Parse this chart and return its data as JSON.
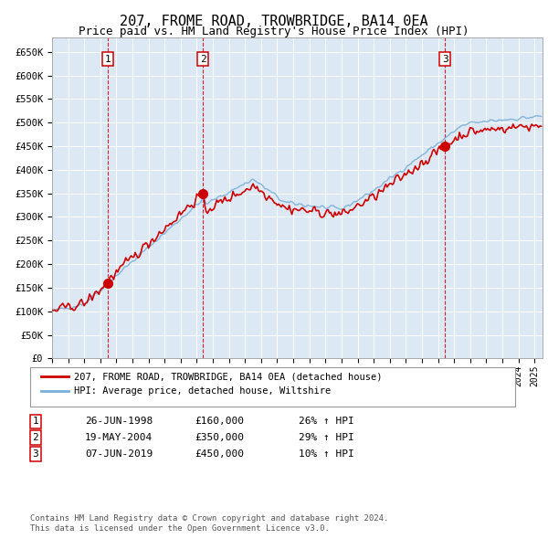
{
  "title": "207, FROME ROAD, TROWBRIDGE, BA14 0EA",
  "subtitle": "Price paid vs. HM Land Registry's House Price Index (HPI)",
  "title_fontsize": 11,
  "subtitle_fontsize": 9,
  "ylim": [
    0,
    680000
  ],
  "yticks": [
    0,
    50000,
    100000,
    150000,
    200000,
    250000,
    300000,
    350000,
    400000,
    450000,
    500000,
    550000,
    600000,
    650000
  ],
  "ytick_labels": [
    "£0",
    "£50K",
    "£100K",
    "£150K",
    "£200K",
    "£250K",
    "£300K",
    "£350K",
    "£400K",
    "£450K",
    "£500K",
    "£550K",
    "£600K",
    "£650K"
  ],
  "background_color": "#ffffff",
  "plot_bg_color": "#dce9f5",
  "grid_color": "#ffffff",
  "red_line_color": "#cc0000",
  "blue_line_color": "#7aaed6",
  "vline_color": "#cc0000",
  "marker_color": "#cc0000",
  "sale1_date_x": 1998.48,
  "sale1_price": 160000,
  "sale2_date_x": 2004.38,
  "sale2_price": 350000,
  "sale3_date_x": 2019.43,
  "sale3_price": 450000,
  "legend_line1": "207, FROME ROAD, TROWBRIDGE, BA14 0EA (detached house)",
  "legend_line2": "HPI: Average price, detached house, Wiltshire",
  "table_rows": [
    [
      "1",
      "26-JUN-1998",
      "£160,000",
      "26% ↑ HPI"
    ],
    [
      "2",
      "19-MAY-2004",
      "£350,000",
      "29% ↑ HPI"
    ],
    [
      "3",
      "07-JUN-2019",
      "£450,000",
      "10% ↑ HPI"
    ]
  ],
  "footnote": "Contains HM Land Registry data © Crown copyright and database right 2024.\nThis data is licensed under the Open Government Licence v3.0.",
  "xmin": 1995.0,
  "xmax": 2025.5
}
